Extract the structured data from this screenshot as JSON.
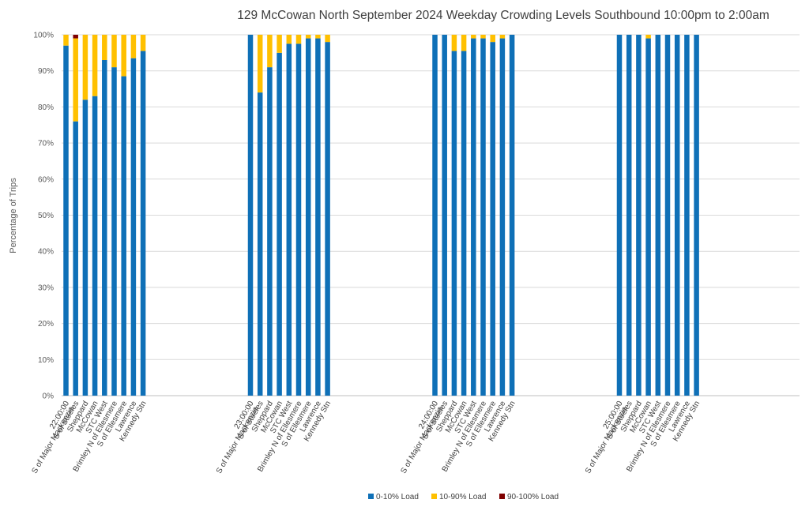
{
  "chart_data": {
    "type": "bar",
    "stacked": true,
    "title": "129 McCowan North September 2024  Weekday Crowding Levels Southbound 10:00pm to 2:00am",
    "ylabel": "Percentage of Trips",
    "xlabel": "",
    "ylim": [
      0,
      100
    ],
    "yticks": [
      "0%",
      "10%",
      "20%",
      "30%",
      "40%",
      "50%",
      "60%",
      "70%",
      "80%",
      "90%",
      "100%"
    ],
    "grid": true,
    "legend_position": "bottom",
    "stops": [
      "S of Major Mackenzie",
      "S of Steeles",
      "Sheppard",
      "McCowan",
      "STC West",
      "Brimley N of Ellesmere",
      "S of Ellesmere",
      "Lawrence",
      "Kennedy Stn"
    ],
    "groups": [
      {
        "label": "22:00:00",
        "series": [
          {
            "name": "0-10% Load",
            "values": [
              97,
              76,
              82,
              83,
              93,
              91,
              88.5,
              93.5,
              95.5
            ]
          },
          {
            "name": "10-90% Load",
            "values": [
              3,
              23,
              18,
              17,
              7,
              9,
              11.5,
              6.5,
              4.5
            ]
          },
          {
            "name": "90-100% Load",
            "values": [
              0,
              1,
              0,
              0,
              0,
              0,
              0,
              0,
              0
            ]
          }
        ]
      },
      {
        "label": "23:00:00",
        "series": [
          {
            "name": "0-10% Load",
            "values": [
              100,
              84,
              91,
              95,
              97.5,
              97.5,
              99,
              99,
              98
            ]
          },
          {
            "name": "10-90% Load",
            "values": [
              0,
              16,
              9,
              5,
              2.5,
              2.5,
              1,
              1,
              2
            ]
          },
          {
            "name": "90-100% Load",
            "values": [
              0,
              0,
              0,
              0,
              0,
              0,
              0,
              0,
              0
            ]
          }
        ]
      },
      {
        "label": "24:00:00",
        "series": [
          {
            "name": "0-10% Load",
            "values": [
              100,
              100,
              95.5,
              95.5,
              99,
              99,
              98,
              99,
              100
            ]
          },
          {
            "name": "10-90% Load",
            "values": [
              0,
              0,
              4.5,
              4.5,
              1,
              1,
              2,
              1,
              0
            ]
          },
          {
            "name": "90-100% Load",
            "values": [
              0,
              0,
              0,
              0,
              0,
              0,
              0,
              0,
              0
            ]
          }
        ]
      },
      {
        "label": "25:00:00",
        "series": [
          {
            "name": "0-10% Load",
            "values": [
              100,
              100,
              100,
              99,
              100,
              100,
              100,
              100,
              100
            ]
          },
          {
            "name": "10-90% Load",
            "values": [
              0,
              0,
              0,
              1,
              0,
              0,
              0,
              0,
              0
            ]
          },
          {
            "name": "90-100% Load",
            "values": [
              0,
              0,
              0,
              0,
              0,
              0,
              0,
              0,
              0
            ]
          }
        ]
      }
    ],
    "legend": [
      {
        "name": "0-10% Load",
        "color": "#0f70b7"
      },
      {
        "name": "10-90% Load",
        "color": "#ffc000"
      },
      {
        "name": "90-100% Load",
        "color": "#7f0000"
      }
    ]
  }
}
